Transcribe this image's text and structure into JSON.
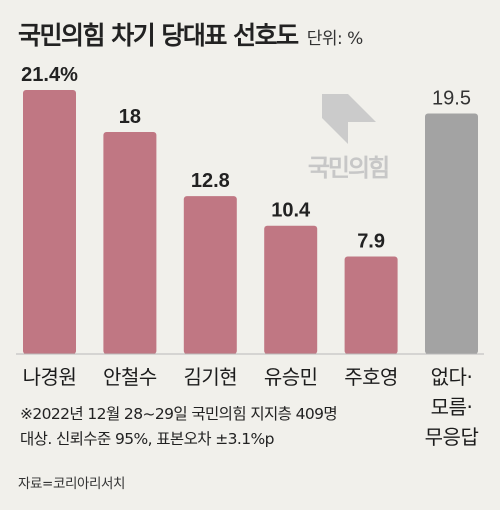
{
  "header": {
    "title": "국민의힘 차기 당대표 선호도",
    "unit": "단위: %"
  },
  "logo": {
    "text": "국민의힘"
  },
  "chart_data": {
    "type": "bar",
    "title": "국민의힘 차기 당대표 선호도",
    "unit": "단위: %",
    "categories": [
      "나경원",
      "안철수",
      "김기현",
      "유승민",
      "주호영",
      "없다·모름·무응답"
    ],
    "category_lines": [
      [
        "나경원"
      ],
      [
        "안철수"
      ],
      [
        "김기현"
      ],
      [
        "유승민"
      ],
      [
        "주호영"
      ],
      [
        "없다·",
        "모름·",
        "무응답"
      ]
    ],
    "values": [
      21.4,
      18,
      12.8,
      10.4,
      7.9,
      19.5
    ],
    "value_labels": [
      "21.4%",
      "18",
      "12.8",
      "10.4",
      "7.9",
      "19.5"
    ],
    "colors": [
      "#c07783",
      "#c07783",
      "#c07783",
      "#c07783",
      "#c07783",
      "#a3a3a3"
    ],
    "ylim": [
      0,
      21.4
    ],
    "grid": false,
    "legend": "none"
  },
  "footnote": {
    "line1": "※2022년 12월 28~29일 국민의힘 지지층 409명",
    "line2": "대상. 신뢰수준 95%, 표본오차 ±3.1%p"
  },
  "source": "자료=코리아리서치"
}
